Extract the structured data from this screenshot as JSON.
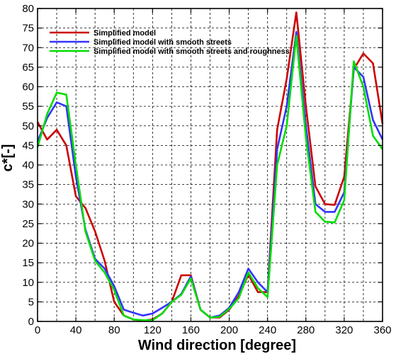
{
  "chart_data": {
    "type": "line",
    "title": "",
    "xlabel": "Wind direction [degree]",
    "ylabel": "c*[-]",
    "xlim": [
      0,
      360
    ],
    "ylim": [
      0,
      80
    ],
    "xticks": [
      0,
      40,
      80,
      120,
      160,
      200,
      240,
      280,
      320,
      360
    ],
    "yticks": [
      0,
      5,
      10,
      15,
      20,
      25,
      30,
      35,
      40,
      45,
      50,
      55,
      60,
      65,
      70,
      75,
      80
    ],
    "x_gridlines": [
      0,
      20,
      40,
      60,
      80,
      100,
      120,
      140,
      160,
      180,
      200,
      220,
      240,
      260,
      280,
      300,
      320,
      340,
      360
    ],
    "y_gridlines": [
      0,
      5,
      10,
      15,
      20,
      25,
      30,
      35,
      40,
      45,
      50,
      55,
      60,
      65,
      70,
      75,
      80
    ],
    "grid": true,
    "legend_position": "top-left",
    "x": [
      0,
      10,
      20,
      30,
      40,
      50,
      60,
      70,
      80,
      90,
      100,
      110,
      120,
      130,
      140,
      150,
      160,
      170,
      180,
      190,
      200,
      210,
      220,
      230,
      240,
      250,
      260,
      270,
      280,
      290,
      300,
      310,
      320,
      330,
      340,
      350,
      360
    ],
    "series": [
      {
        "name": "Simplified model",
        "color": "#cc0000",
        "values": [
          51,
          46.5,
          49,
          45,
          32,
          29,
          23,
          15.5,
          5,
          1.5,
          0.5,
          0.2,
          0.5,
          2,
          5,
          11.8,
          11.8,
          3,
          1,
          1,
          3,
          6.5,
          12,
          7.5,
          7.5,
          49,
          62,
          79,
          55,
          34.5,
          30,
          29.8,
          37,
          64.5,
          68.5,
          66,
          50.5
        ]
      },
      {
        "name": "Simplified model with smooth streets",
        "color": "#3333ff",
        "values": [
          46,
          52,
          56,
          55,
          37,
          23.5,
          16,
          13.5,
          9,
          3,
          2.2,
          1.5,
          2,
          3.5,
          5,
          7,
          11.5,
          3,
          1,
          1.5,
          3.5,
          7.5,
          13.5,
          10,
          7.5,
          44,
          55,
          74,
          50,
          30,
          28,
          28,
          33,
          65,
          62.5,
          51.5,
          46.5
        ]
      },
      {
        "name": "Simplified model with smooth streets and roughness",
        "color": "#00dd00",
        "values": [
          44.5,
          53,
          58.5,
          58,
          40,
          23,
          15.5,
          12.5,
          8,
          1.5,
          0.5,
          0.3,
          0.3,
          2,
          5,
          6.8,
          11,
          3,
          1,
          1.2,
          3.2,
          6,
          12.5,
          8.5,
          6.2,
          40,
          50,
          73,
          47,
          28,
          25.5,
          25.3,
          31,
          66.5,
          60,
          47.5,
          44
        ]
      }
    ]
  }
}
